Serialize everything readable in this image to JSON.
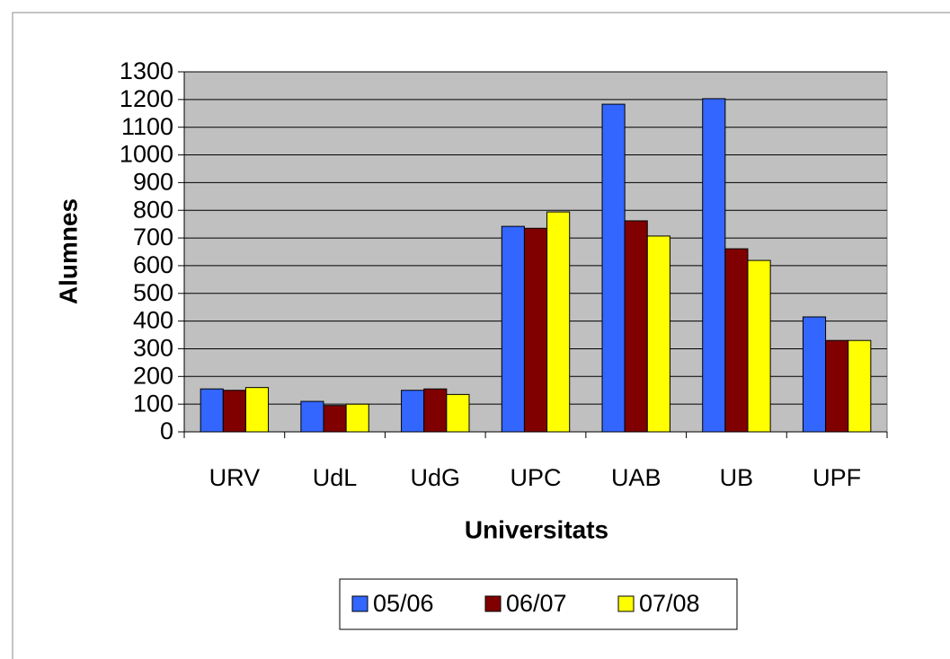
{
  "chart_data": {
    "type": "bar",
    "x_label": "Universitats",
    "y_label": "Alumnes",
    "categories": [
      "URV",
      "UdL",
      "UdG",
      "UPC",
      "UAB",
      "UB",
      "UPF"
    ],
    "series": [
      {
        "name": "05/06",
        "color": "#3366ff",
        "values": [
          155,
          110,
          150,
          742,
          1183,
          1203,
          415
        ]
      },
      {
        "name": "06/07",
        "color": "#800000",
        "values": [
          150,
          95,
          155,
          735,
          762,
          661,
          330
        ]
      },
      {
        "name": "07/08",
        "color": "#ffff00",
        "values": [
          160,
          100,
          135,
          794,
          707,
          619,
          330
        ]
      }
    ],
    "ylim": [
      0,
      1300
    ],
    "yticks": [
      0,
      100,
      200,
      300,
      400,
      500,
      600,
      700,
      800,
      900,
      1000,
      1100,
      1200,
      1300
    ],
    "grid": true,
    "legend": "bottom"
  }
}
